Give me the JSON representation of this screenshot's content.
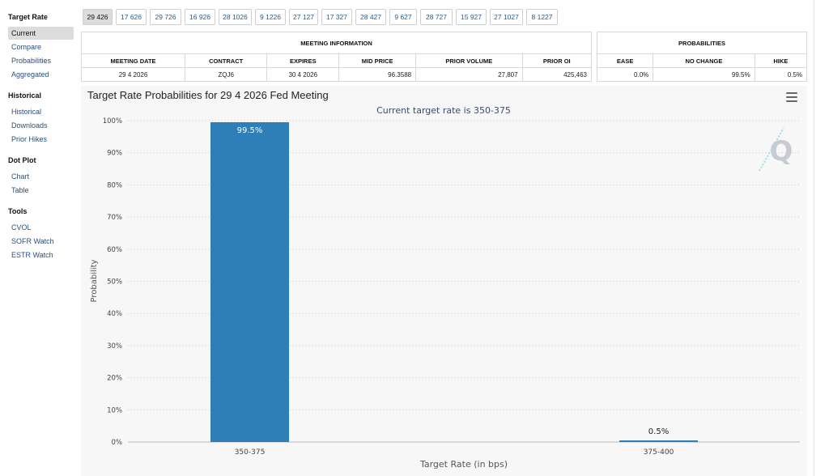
{
  "sidebar": {
    "sections": [
      {
        "title": "Target Rate",
        "items": [
          {
            "label": "Current",
            "active": true
          },
          {
            "label": "Compare"
          },
          {
            "label": "Probabilities"
          },
          {
            "label": "Aggregated"
          }
        ]
      },
      {
        "title": "Historical",
        "items": [
          {
            "label": "Historical"
          },
          {
            "label": "Downloads"
          },
          {
            "label": "Prior Hikes"
          }
        ]
      },
      {
        "title": "Dot Plot",
        "items": [
          {
            "label": "Chart"
          },
          {
            "label": "Table"
          }
        ]
      },
      {
        "title": "Tools",
        "items": [
          {
            "label": "CVOL"
          },
          {
            "label": "SOFR Watch"
          },
          {
            "label": "ESTR Watch"
          }
        ]
      }
    ]
  },
  "tabs": [
    "29 426",
    "17 626",
    "29 726",
    "16 926",
    "28 1026",
    "9 1226",
    "27 127",
    "17 327",
    "28 427",
    "9 627",
    "28 727",
    "15 927",
    "27 1027",
    "8 1227"
  ],
  "active_tab": 0,
  "meeting_info": {
    "title": "MEETING INFORMATION",
    "headers": [
      "MEETING DATE",
      "CONTRACT",
      "EXPIRES",
      "MID PRICE",
      "PRIOR VOLUME",
      "PRIOR OI"
    ],
    "row": [
      "29 4 2026",
      "ZQJ6",
      "30 4 2026",
      "96.3588",
      "27,807",
      "425,463"
    ]
  },
  "probabilities": {
    "title": "PROBABILITIES",
    "headers": [
      "EASE",
      "NO CHANGE",
      "HIKE"
    ],
    "row": [
      "0.0%",
      "99.5%",
      "0.5%"
    ]
  },
  "chart": {
    "title": "Target Rate Probabilities for 29 4 2026 Fed Meeting",
    "subtitle": "Current target rate is 350-375",
    "logo_letter": "Q",
    "menu_icon": "hamburger-menu-icon"
  },
  "chart_data": {
    "type": "bar",
    "title": "Target Rate Probabilities for 29 4 2026 Fed Meeting",
    "subtitle": "Current target rate is 350-375",
    "categories": [
      "350-375",
      "375-400"
    ],
    "values": [
      99.5,
      0.5
    ],
    "data_labels": [
      "99.5%",
      "0.5%"
    ],
    "xlabel": "Target Rate (in bps)",
    "ylabel": "Probability",
    "ylim": [
      0,
      100
    ],
    "yticks": [
      "0%",
      "10%",
      "20%",
      "30%",
      "40%",
      "50%",
      "60%",
      "70%",
      "80%",
      "90%",
      "100%"
    ],
    "grid": true,
    "bar_color": "#2e7fb8"
  }
}
